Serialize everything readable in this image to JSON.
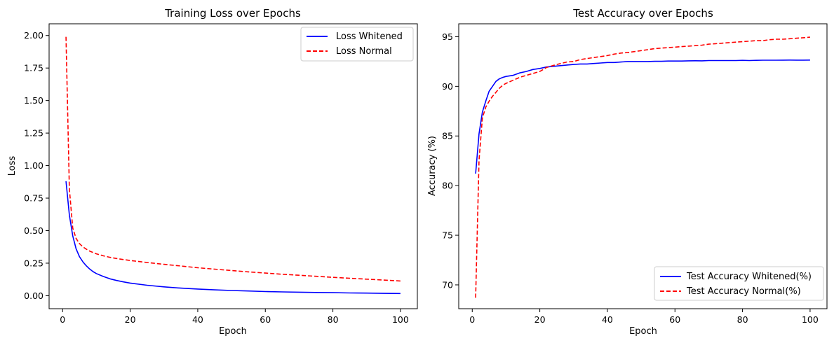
{
  "chart_data": [
    {
      "type": "line",
      "title": "Training Loss over Epochs",
      "xlabel": "Epoch",
      "ylabel": "Loss",
      "xlim": [
        -4,
        105
      ],
      "ylim": [
        -0.1,
        2.09
      ],
      "xticks": [
        0,
        20,
        40,
        60,
        80,
        100
      ],
      "xtick_labels": [
        "0",
        "20",
        "40",
        "60",
        "80",
        "100"
      ],
      "yticks": [
        0.0,
        0.25,
        0.5,
        0.75,
        1.0,
        1.25,
        1.5,
        1.75,
        2.0
      ],
      "ytick_labels": [
        "0.00",
        "0.25",
        "0.50",
        "0.75",
        "1.00",
        "1.25",
        "1.50",
        "1.75",
        "2.00"
      ],
      "grid": false,
      "legend_position": "top-right",
      "x": [
        1,
        2,
        3,
        4,
        5,
        6,
        7,
        8,
        9,
        10,
        12,
        14,
        16,
        18,
        20,
        25,
        30,
        35,
        40,
        45,
        50,
        55,
        60,
        65,
        70,
        75,
        80,
        85,
        90,
        95,
        100
      ],
      "series": [
        {
          "name": "Loss Whitened",
          "color": "#0000ff",
          "dash": "solid",
          "values": [
            0.88,
            0.62,
            0.46,
            0.36,
            0.3,
            0.26,
            0.23,
            0.205,
            0.185,
            0.17,
            0.148,
            0.13,
            0.117,
            0.106,
            0.097,
            0.08,
            0.068,
            0.058,
            0.051,
            0.045,
            0.04,
            0.036,
            0.032,
            0.029,
            0.027,
            0.025,
            0.023,
            0.021,
            0.02,
            0.018,
            0.017
          ]
        },
        {
          "name": "Loss Normal",
          "color": "#ff0000",
          "dash": "dashed",
          "values": [
            1.99,
            0.82,
            0.52,
            0.44,
            0.4,
            0.375,
            0.358,
            0.343,
            0.332,
            0.322,
            0.307,
            0.295,
            0.286,
            0.278,
            0.271,
            0.255,
            0.241,
            0.228,
            0.215,
            0.204,
            0.193,
            0.183,
            0.174,
            0.165,
            0.157,
            0.149,
            0.141,
            0.134,
            0.127,
            0.12,
            0.113
          ]
        }
      ]
    },
    {
      "type": "line",
      "title": "Test Accuracy over Epochs",
      "xlabel": "Epoch",
      "ylabel": "Accuracy (%)",
      "xlim": [
        -4,
        105
      ],
      "ylim": [
        67.6,
        96.3
      ],
      "xticks": [
        0,
        20,
        40,
        60,
        80,
        100
      ],
      "xtick_labels": [
        "0",
        "20",
        "40",
        "60",
        "80",
        "100"
      ],
      "yticks": [
        70,
        75,
        80,
        85,
        90,
        95
      ],
      "ytick_labels": [
        "70",
        "75",
        "80",
        "85",
        "90",
        "95"
      ],
      "grid": false,
      "legend_position": "bottom-right",
      "x": [
        1,
        2,
        3,
        4,
        5,
        6,
        7,
        8,
        9,
        10,
        12,
        14,
        16,
        18,
        20,
        22,
        25,
        28,
        30,
        32,
        34,
        36,
        38,
        40,
        42,
        44,
        46,
        48,
        50,
        52,
        54,
        56,
        58,
        60,
        62,
        64,
        66,
        68,
        70,
        72,
        74,
        76,
        78,
        80,
        82,
        84,
        86,
        88,
        90,
        92,
        94,
        96,
        98,
        100
      ],
      "series": [
        {
          "name": "Test Accuracy Whitened(%)",
          "color": "#0000ff",
          "dash": "solid",
          "values": [
            81.2,
            85.2,
            87.4,
            88.5,
            89.5,
            90.0,
            90.5,
            90.75,
            90.9,
            91.0,
            91.1,
            91.35,
            91.5,
            91.7,
            91.8,
            91.95,
            92.05,
            92.15,
            92.2,
            92.25,
            92.25,
            92.3,
            92.35,
            92.4,
            92.4,
            92.45,
            92.5,
            92.5,
            92.5,
            92.5,
            92.52,
            92.52,
            92.55,
            92.55,
            92.55,
            92.57,
            92.58,
            92.57,
            92.6,
            92.6,
            92.6,
            92.6,
            92.6,
            92.62,
            92.6,
            92.62,
            92.63,
            92.63,
            92.63,
            92.64,
            92.65,
            92.64,
            92.64,
            92.65
          ]
        },
        {
          "name": "Test Accuracy Normal(%)",
          "color": "#ff0000",
          "dash": "dashed",
          "values": [
            68.7,
            82.5,
            86.8,
            87.9,
            88.5,
            89.0,
            89.4,
            89.8,
            90.1,
            90.3,
            90.6,
            90.9,
            91.1,
            91.3,
            91.5,
            91.9,
            92.2,
            92.45,
            92.5,
            92.7,
            92.8,
            92.9,
            93.0,
            93.1,
            93.25,
            93.35,
            93.4,
            93.5,
            93.6,
            93.7,
            93.8,
            93.85,
            93.9,
            93.95,
            94.0,
            94.05,
            94.1,
            94.15,
            94.25,
            94.3,
            94.35,
            94.4,
            94.45,
            94.5,
            94.55,
            94.6,
            94.6,
            94.7,
            94.75,
            94.75,
            94.8,
            94.85,
            94.9,
            94.95
          ]
        }
      ]
    }
  ]
}
